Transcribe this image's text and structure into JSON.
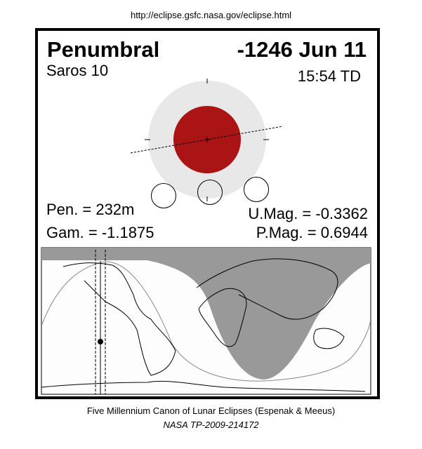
{
  "header": {
    "url": "http://eclipse.gsfc.nasa.gov/eclipse.html"
  },
  "eclipse": {
    "type": "Penumbral",
    "date": "-1246 Jun 11",
    "saros": "Saros  10",
    "time": "15:54 TD",
    "pen_duration": "Pen. = 232m",
    "gamma": "Gam. = -1.1875",
    "umbral_mag": "U.Mag. = -0.3362",
    "penumbral_mag": "P.Mag. = 0.6944"
  },
  "colors": {
    "umbra": "#aa1414",
    "penumbra": "#e8e8e8",
    "night_region": "#999999",
    "map_background": "#fdfdfd"
  },
  "footer": {
    "line1": "Five Millennium Canon of Lunar Eclipses (Espenak & Meeus)",
    "line2": "NASA TP-2009-214172"
  }
}
